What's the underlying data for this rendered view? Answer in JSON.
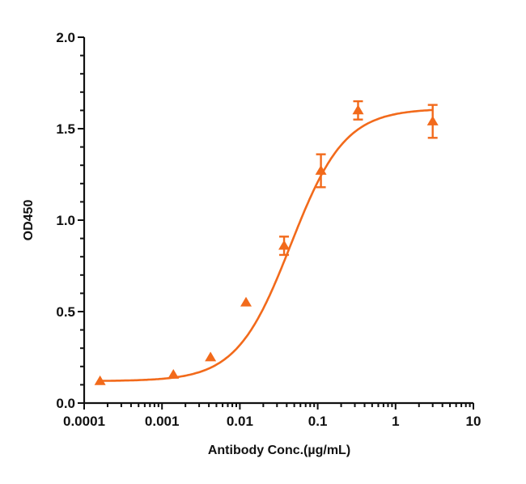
{
  "chart_data": {
    "type": "scatter",
    "title": "",
    "xlabel": "Antibody Conc.(µg/mL)",
    "ylabel": "OD450",
    "xscale": "log",
    "xlim": [
      0.0001,
      10
    ],
    "ylim": [
      0,
      2.0
    ],
    "xticks": [
      "0.0001",
      "0.001",
      "0.01",
      "0.1",
      "1",
      "10"
    ],
    "yticks": [
      "0.0",
      "0.5",
      "1.0",
      "1.5",
      "2.0"
    ],
    "grid": false,
    "legend": null,
    "color": "#f26a1b",
    "marker": "triangle",
    "series": [
      {
        "name": "OD450",
        "x": [
          0.00016,
          0.0014,
          0.0042,
          0.012,
          0.037,
          0.11,
          0.33,
          3.0
        ],
        "y": [
          0.12,
          0.155,
          0.25,
          0.55,
          0.86,
          1.27,
          1.6,
          1.54
        ],
        "yerr": [
          0.01,
          0.01,
          0.015,
          0.015,
          0.05,
          0.09,
          0.05,
          0.09
        ]
      }
    ],
    "fit": {
      "type": "4PL",
      "bottom": 0.12,
      "top": 1.61,
      "ec50": 0.045,
      "hill": 1.25
    }
  }
}
